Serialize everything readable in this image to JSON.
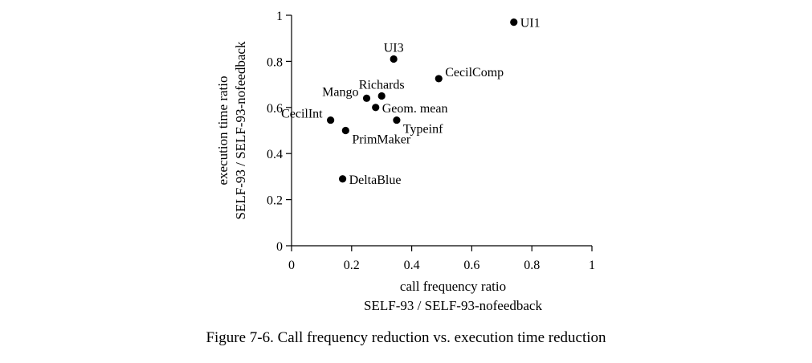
{
  "caption": "Figure 7-6.  Call frequency reduction vs. execution time reduction",
  "chart_data": {
    "type": "scatter",
    "xlabel": [
      "call frequency ratio",
      "SELF-93 / SELF-93-nofeedback"
    ],
    "ylabel": [
      "execution time ratio",
      "SELF-93 / SELF-93-nofeedback"
    ],
    "xlim": [
      0,
      1
    ],
    "ylim": [
      0,
      1
    ],
    "x_ticks": [
      0,
      0.2,
      0.4,
      0.6,
      0.8,
      1
    ],
    "x_tick_labels": [
      "0",
      "0.2",
      "0.4",
      "0.6",
      "0.8",
      "1"
    ],
    "y_ticks": [
      0,
      0.2,
      0.4,
      0.6,
      0.8,
      1
    ],
    "y_tick_labels": [
      "0",
      "0.2",
      "0.4",
      "0.6",
      "0.8",
      "1"
    ],
    "grid": false,
    "points": [
      {
        "label": "UI1",
        "x": 0.74,
        "y": 0.97,
        "label_pos": "right"
      },
      {
        "label": "UI3",
        "x": 0.34,
        "y": 0.81,
        "label_pos": "above"
      },
      {
        "label": "CecilComp",
        "x": 0.49,
        "y": 0.725,
        "label_pos": "upper-right"
      },
      {
        "label": "Richards",
        "x": 0.3,
        "y": 0.65,
        "label_pos": "above"
      },
      {
        "label": "Mango",
        "x": 0.25,
        "y": 0.64,
        "label_pos": "upper-left"
      },
      {
        "label": "Geom. mean",
        "x": 0.28,
        "y": 0.6,
        "label_pos": "right"
      },
      {
        "label": "CecilInt",
        "x": 0.13,
        "y": 0.545,
        "label_pos": "upper-left"
      },
      {
        "label": "Typeinf",
        "x": 0.35,
        "y": 0.545,
        "label_pos": "lower-right"
      },
      {
        "label": "PrimMaker",
        "x": 0.18,
        "y": 0.5,
        "label_pos": "lower-right"
      },
      {
        "label": "DeltaBlue",
        "x": 0.17,
        "y": 0.29,
        "label_pos": "right"
      }
    ]
  }
}
